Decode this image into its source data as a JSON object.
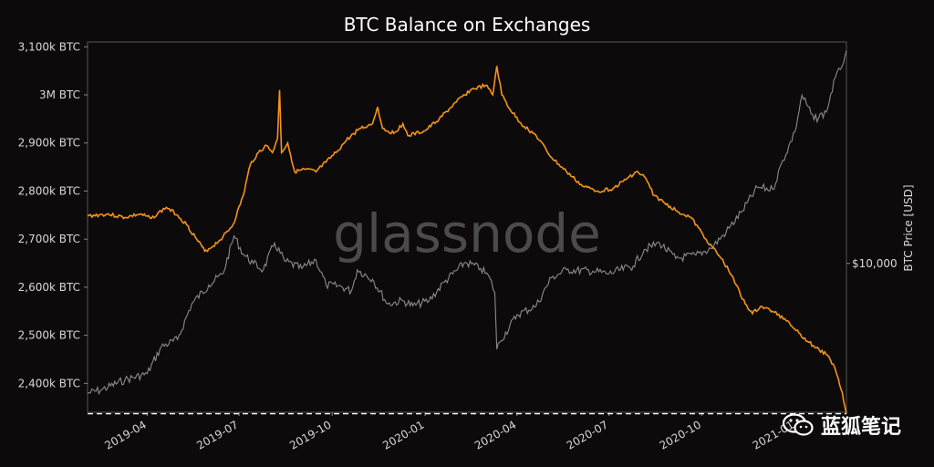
{
  "colors": {
    "background": "#0c0a0b",
    "balance": "#f7931a",
    "price": "#8c8c8c",
    "min_line": "#ffffff",
    "frame": "#555555"
  },
  "watermark": "glassnode",
  "badge": {
    "icon": "wechat-icon",
    "text": "蓝狐笔记"
  },
  "chart_data": {
    "type": "line",
    "title": "BTC Balance on Exchanges",
    "xlabel": "",
    "ylabel": "",
    "y2label": "BTC Price [USD]",
    "x_range": [
      "2019-02-01",
      "2021-02-21"
    ],
    "ylim": [
      2340,
      3110
    ],
    "y2lim_log": [
      3000,
      60000
    ],
    "x_ticks": [
      {
        "date": "2019-04-01",
        "label": "2019-04"
      },
      {
        "date": "2019-07-01",
        "label": "2019-07"
      },
      {
        "date": "2019-10-01",
        "label": "2019-10"
      },
      {
        "date": "2020-01-01",
        "label": "2020-01"
      },
      {
        "date": "2020-04-01",
        "label": "2020-04"
      },
      {
        "date": "2020-07-01",
        "label": "2020-07"
      },
      {
        "date": "2020-10-01",
        "label": "2020-10"
      },
      {
        "date": "2021-01-01",
        "label": "2021-01"
      }
    ],
    "y_ticks": [
      {
        "value": 2400,
        "label": "2,400k BTC"
      },
      {
        "value": 2500,
        "label": "2,500k BTC"
      },
      {
        "value": 2600,
        "label": "2,600k BTC"
      },
      {
        "value": 2700,
        "label": "2,700k BTC"
      },
      {
        "value": 2800,
        "label": "2,800k BTC"
      },
      {
        "value": 2900,
        "label": "2,900k BTC"
      },
      {
        "value": 3000,
        "label": "3M BTC"
      },
      {
        "value": 3100,
        "label": "3,100k BTC"
      }
    ],
    "y2_ticks": [
      {
        "value": 10000,
        "label": "$10,000"
      }
    ],
    "min_line": {
      "value": 2337,
      "style": "dashed"
    },
    "series": [
      {
        "name": "BTC Balance on Exchanges (k BTC)",
        "axis": "left",
        "points": [
          [
            "2019-02-01",
            2748
          ],
          [
            "2019-02-20",
            2752
          ],
          [
            "2019-03-10",
            2745
          ],
          [
            "2019-03-25",
            2752
          ],
          [
            "2019-04-05",
            2743
          ],
          [
            "2019-04-20",
            2766
          ],
          [
            "2019-05-01",
            2750
          ],
          [
            "2019-05-10",
            2730
          ],
          [
            "2019-05-20",
            2700
          ],
          [
            "2019-05-28",
            2675
          ],
          [
            "2019-06-05",
            2685
          ],
          [
            "2019-06-15",
            2705
          ],
          [
            "2019-06-25",
            2730
          ],
          [
            "2019-07-05",
            2790
          ],
          [
            "2019-07-12",
            2855
          ],
          [
            "2019-07-20",
            2880
          ],
          [
            "2019-07-28",
            2895
          ],
          [
            "2019-08-03",
            2880
          ],
          [
            "2019-08-08",
            2910
          ],
          [
            "2019-08-10",
            3010
          ],
          [
            "2019-08-12",
            2880
          ],
          [
            "2019-08-18",
            2900
          ],
          [
            "2019-08-25",
            2840
          ],
          [
            "2019-09-05",
            2845
          ],
          [
            "2019-09-15",
            2840
          ],
          [
            "2019-09-25",
            2860
          ],
          [
            "2019-10-05",
            2880
          ],
          [
            "2019-10-15",
            2905
          ],
          [
            "2019-10-28",
            2930
          ],
          [
            "2019-11-05",
            2935
          ],
          [
            "2019-11-10",
            2940
          ],
          [
            "2019-11-15",
            2975
          ],
          [
            "2019-11-20",
            2930
          ],
          [
            "2019-12-01",
            2920
          ],
          [
            "2019-12-10",
            2940
          ],
          [
            "2019-12-15",
            2915
          ],
          [
            "2020-01-01",
            2925
          ],
          [
            "2020-01-15",
            2950
          ],
          [
            "2020-02-01",
            2985
          ],
          [
            "2020-02-15",
            3010
          ],
          [
            "2020-03-01",
            3020
          ],
          [
            "2020-03-08",
            3000
          ],
          [
            "2020-03-12",
            3060
          ],
          [
            "2020-03-17",
            3000
          ],
          [
            "2020-03-25",
            2970
          ],
          [
            "2020-04-05",
            2940
          ],
          [
            "2020-04-20",
            2915
          ],
          [
            "2020-05-05",
            2870
          ],
          [
            "2020-05-20",
            2840
          ],
          [
            "2020-06-05",
            2810
          ],
          [
            "2020-06-20",
            2800
          ],
          [
            "2020-07-05",
            2805
          ],
          [
            "2020-07-15",
            2820
          ],
          [
            "2020-07-28",
            2840
          ],
          [
            "2020-08-05",
            2830
          ],
          [
            "2020-08-15",
            2790
          ],
          [
            "2020-08-25",
            2775
          ],
          [
            "2020-09-05",
            2760
          ],
          [
            "2020-09-20",
            2745
          ],
          [
            "2020-10-05",
            2700
          ],
          [
            "2020-10-20",
            2660
          ],
          [
            "2020-11-01",
            2620
          ],
          [
            "2020-11-10",
            2575
          ],
          [
            "2020-11-20",
            2545
          ],
          [
            "2020-11-28",
            2560
          ],
          [
            "2020-12-10",
            2550
          ],
          [
            "2020-12-25",
            2530
          ],
          [
            "2021-01-05",
            2505
          ],
          [
            "2021-01-15",
            2485
          ],
          [
            "2021-01-25",
            2470
          ],
          [
            "2021-02-01",
            2460
          ],
          [
            "2021-02-08",
            2440
          ],
          [
            "2021-02-13",
            2410
          ],
          [
            "2021-02-17",
            2380
          ],
          [
            "2021-02-21",
            2337
          ]
        ]
      },
      {
        "name": "BTC Price [USD]",
        "axis": "right",
        "points": [
          [
            "2019-02-01",
            3500
          ],
          [
            "2019-02-15",
            3600
          ],
          [
            "2019-03-10",
            3900
          ],
          [
            "2019-04-01",
            4100
          ],
          [
            "2019-04-15",
            5100
          ],
          [
            "2019-05-01",
            5400
          ],
          [
            "2019-05-15",
            7200
          ],
          [
            "2019-06-01",
            8400
          ],
          [
            "2019-06-15",
            9200
          ],
          [
            "2019-06-26",
            12500
          ],
          [
            "2019-07-05",
            10800
          ],
          [
            "2019-07-15",
            10000
          ],
          [
            "2019-07-25",
            9500
          ],
          [
            "2019-08-05",
            11800
          ],
          [
            "2019-08-15",
            10200
          ],
          [
            "2019-09-01",
            9600
          ],
          [
            "2019-09-15",
            10300
          ],
          [
            "2019-09-25",
            8400
          ],
          [
            "2019-10-10",
            8300
          ],
          [
            "2019-10-20",
            8000
          ],
          [
            "2019-10-26",
            9500
          ],
          [
            "2019-11-10",
            8800
          ],
          [
            "2019-11-25",
            7200
          ],
          [
            "2019-12-10",
            7400
          ],
          [
            "2019-12-20",
            7100
          ],
          [
            "2020-01-05",
            7400
          ],
          [
            "2020-01-20",
            8600
          ],
          [
            "2020-02-10",
            10100
          ],
          [
            "2020-02-25",
            9600
          ],
          [
            "2020-03-05",
            8900
          ],
          [
            "2020-03-10",
            7900
          ],
          [
            "2020-03-12",
            5000
          ],
          [
            "2020-03-15",
            5300
          ],
          [
            "2020-04-01",
            6600
          ],
          [
            "2020-04-20",
            7100
          ],
          [
            "2020-05-05",
            8900
          ],
          [
            "2020-05-20",
            9500
          ],
          [
            "2020-06-15",
            9400
          ],
          [
            "2020-07-01",
            9200
          ],
          [
            "2020-07-25",
            9800
          ],
          [
            "2020-08-05",
            11200
          ],
          [
            "2020-08-20",
            11800
          ],
          [
            "2020-09-05",
            10400
          ],
          [
            "2020-09-25",
            10700
          ],
          [
            "2020-10-10",
            11300
          ],
          [
            "2020-10-25",
            12900
          ],
          [
            "2020-11-10",
            15300
          ],
          [
            "2020-11-25",
            18500
          ],
          [
            "2020-12-10",
            18200
          ],
          [
            "2020-12-20",
            23000
          ],
          [
            "2021-01-01",
            29000
          ],
          [
            "2021-01-08",
            39000
          ],
          [
            "2021-01-20",
            32000
          ],
          [
            "2021-02-01",
            34000
          ],
          [
            "2021-02-10",
            45000
          ],
          [
            "2021-02-15",
            48000
          ],
          [
            "2021-02-21",
            56000
          ]
        ]
      }
    ]
  }
}
